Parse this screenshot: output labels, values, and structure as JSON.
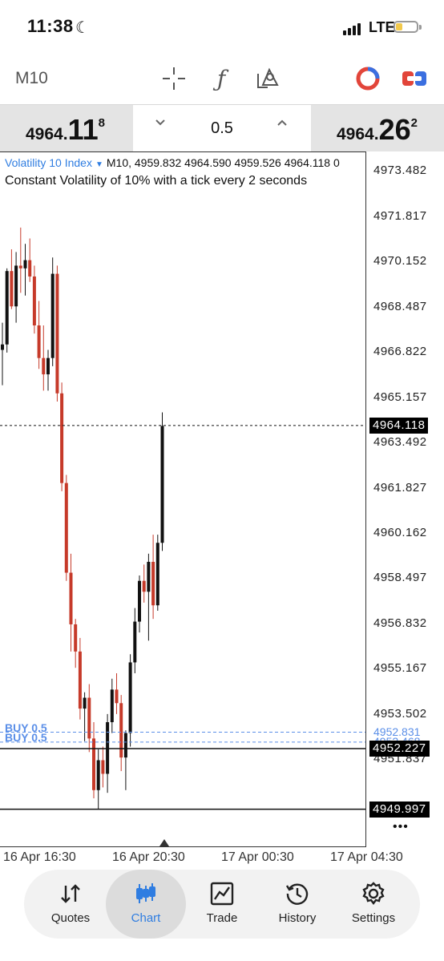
{
  "status_bar": {
    "time": "11:38",
    "network": "LTE"
  },
  "toolbar": {
    "timeframe": "M10",
    "icons": [
      "crosshair-icon",
      "function-icon",
      "objects-icon",
      "account-switcher-icon",
      "toggle-icon"
    ]
  },
  "trade_bar": {
    "sell_price": {
      "main": "4964.",
      "big": "11",
      "small": "8"
    },
    "buy_price": {
      "main": "4964.",
      "big": "26",
      "small": "2"
    },
    "lot": "0.5"
  },
  "chart": {
    "symbol": "Volatility 10 Index",
    "ohlc_text": "M10, 4959.832 4964.590 4959.526 4964.118 0",
    "description": "Constant Volatility of 10% with a tick every 2 seconds",
    "more": "•••"
  },
  "chart_data": {
    "type": "candlestick",
    "y_ticks": [
      "4973.482",
      "4971.817",
      "4970.152",
      "4968.487",
      "4966.822",
      "4965.157",
      "4963.492",
      "4961.827",
      "4960.162",
      "4958.497",
      "4956.832",
      "4955.167",
      "4953.502",
      "4951.837"
    ],
    "ylim": [
      4948.6,
      4974.2
    ],
    "current_price": "4964.118",
    "level_line_price": "4952.227",
    "low_line_price": "4949.997",
    "orders": [
      {
        "label": "BUY 0.5",
        "price": "4952.831"
      },
      {
        "label": "BUY 0.5",
        "price": "4952.468"
      }
    ],
    "x_labels": [
      "16 Apr 16:30",
      "16 Apr 20:30",
      "17 Apr 00:30",
      "17 Apr 04:30"
    ],
    "candles": [
      [
        4966.9,
        4967.9,
        4965.6,
        4967.1
      ],
      [
        4967.1,
        4969.9,
        4966.8,
        4969.8
      ],
      [
        4969.8,
        4970.6,
        4968.4,
        4968.5
      ],
      [
        4968.5,
        4970.5,
        4967.9,
        4970.0
      ],
      [
        4970.0,
        4971.4,
        4969.0,
        4969.9
      ],
      [
        4969.9,
        4970.8,
        4968.9,
        4970.2
      ],
      [
        4970.2,
        4971.0,
        4969.4,
        4969.6
      ],
      [
        4969.6,
        4970.0,
        4967.5,
        4967.8
      ],
      [
        4967.8,
        4968.7,
        4966.2,
        4966.6
      ],
      [
        4966.6,
        4967.8,
        4965.4,
        4966.0
      ],
      [
        4966.0,
        4966.9,
        4965.4,
        4966.6
      ],
      [
        4966.6,
        4970.3,
        4966.3,
        4969.7
      ],
      [
        4969.7,
        4970.0,
        4965.0,
        4965.3
      ],
      [
        4965.3,
        4965.7,
        4961.7,
        4962.0
      ],
      [
        4962.0,
        4962.3,
        4958.4,
        4958.7
      ],
      [
        4958.7,
        4959.4,
        4955.8,
        4956.8
      ],
      [
        4956.8,
        4957.0,
        4955.2,
        4955.8
      ],
      [
        4955.8,
        4956.3,
        4953.3,
        4953.7
      ],
      [
        4953.7,
        4954.3,
        4952.5,
        4954.1
      ],
      [
        4954.1,
        4954.6,
        4952.1,
        4952.6
      ],
      [
        4952.6,
        4953.2,
        4950.4,
        4950.7
      ],
      [
        4950.7,
        4952.2,
        4950.0,
        4951.8
      ],
      [
        4951.8,
        4952.3,
        4950.8,
        4951.3
      ],
      [
        4951.3,
        4953.5,
        4950.6,
        4953.2
      ],
      [
        4953.2,
        4954.8,
        4952.8,
        4954.4
      ],
      [
        4954.4,
        4955.0,
        4953.5,
        4953.9
      ],
      [
        4953.9,
        4954.2,
        4951.4,
        4951.9
      ],
      [
        4951.9,
        4952.9,
        4950.7,
        4952.8
      ],
      [
        4952.8,
        4955.7,
        4952.3,
        4955.4
      ],
      [
        4955.4,
        4957.4,
        4955.0,
        4956.9
      ],
      [
        4956.9,
        4958.6,
        4956.5,
        4958.4
      ],
      [
        4958.4,
        4959.0,
        4957.6,
        4958.0
      ],
      [
        4958.0,
        4959.4,
        4956.2,
        4959.1
      ],
      [
        4959.1,
        4960.1,
        4957.0,
        4957.5
      ],
      [
        4957.5,
        4960.1,
        4957.3,
        4959.8
      ],
      [
        4959.8,
        4964.6,
        4959.5,
        4964.1
      ]
    ]
  },
  "tabs": [
    {
      "label": "Quotes"
    },
    {
      "label": "Chart"
    },
    {
      "label": "Trade"
    },
    {
      "label": "History"
    },
    {
      "label": "Settings"
    }
  ],
  "colors": {
    "bull": "#111111",
    "bear": "#c63a2a",
    "accent": "#2f7de1",
    "order": "#5b8fe8"
  }
}
